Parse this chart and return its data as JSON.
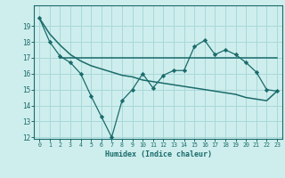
{
  "line1_x": [
    0,
    1,
    2,
    3,
    4,
    5,
    6,
    7,
    8,
    9,
    10,
    11,
    12,
    13,
    14,
    15,
    16,
    17,
    18,
    19,
    20,
    21,
    22,
    23
  ],
  "line1_y": [
    19.5,
    18.0,
    17.1,
    16.7,
    16.0,
    14.6,
    13.3,
    12.0,
    14.3,
    15.0,
    16.0,
    15.1,
    15.9,
    16.2,
    16.2,
    17.7,
    18.1,
    17.2,
    17.5,
    17.2,
    16.7,
    16.1,
    15.0,
    14.9
  ],
  "line2_x": [
    2,
    3,
    4,
    5,
    6,
    7,
    8,
    9,
    10,
    11,
    12,
    13,
    14,
    15,
    16,
    17,
    18,
    19,
    20,
    21,
    22,
    23
  ],
  "line2_y": [
    17.0,
    17.0,
    17.0,
    17.0,
    17.0,
    17.0,
    17.0,
    17.0,
    17.0,
    17.0,
    17.0,
    17.0,
    17.0,
    17.0,
    17.0,
    17.0,
    17.0,
    17.0,
    17.0,
    17.0,
    17.0,
    17.0
  ],
  "line3_x": [
    0,
    1,
    2,
    3,
    4,
    5,
    6,
    7,
    8,
    9,
    10,
    11,
    12,
    13,
    14,
    15,
    16,
    17,
    18,
    19,
    20,
    21,
    22,
    23
  ],
  "line3_y": [
    19.5,
    18.5,
    17.8,
    17.2,
    16.8,
    16.5,
    16.3,
    16.1,
    15.9,
    15.8,
    15.6,
    15.5,
    15.4,
    15.3,
    15.2,
    15.1,
    15.0,
    14.9,
    14.8,
    14.7,
    14.5,
    14.4,
    14.3,
    14.9
  ],
  "color": "#1a6b6b",
  "bg_color": "#ceeeed",
  "grid_color": "#a8d8d8",
  "xlabel": "Humidex (Indice chaleur)",
  "ylim": [
    12,
    20
  ],
  "xlim": [
    -0.5,
    23.5
  ],
  "yticks": [
    12,
    13,
    14,
    15,
    16,
    17,
    18,
    19
  ],
  "xticks": [
    0,
    1,
    2,
    3,
    4,
    5,
    6,
    7,
    8,
    9,
    10,
    11,
    12,
    13,
    14,
    15,
    16,
    17,
    18,
    19,
    20,
    21,
    22,
    23
  ]
}
